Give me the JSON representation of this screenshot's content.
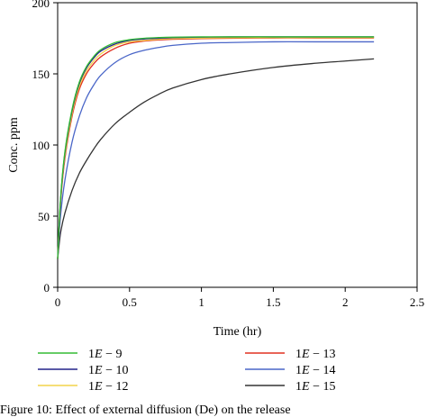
{
  "chart_data": {
    "type": "line",
    "xlabel": "Time (hr)",
    "ylabel": "Conc. ppm",
    "xlim": [
      0,
      2.5
    ],
    "ylim": [
      0,
      200
    ],
    "xticks": [
      "0",
      "0.5",
      "1",
      "1.5",
      "2",
      "2.5"
    ],
    "yticks": [
      "0",
      "50",
      "100",
      "150",
      "200"
    ],
    "grid": false,
    "legend_position": "bottom",
    "series": [
      {
        "name_prefix": "1",
        "name_var": "E",
        "name_suffix": "− 9",
        "color": "#33bb33",
        "x": [
          0,
          0.02,
          0.05,
          0.1,
          0.15,
          0.2,
          0.25,
          0.3,
          0.4,
          0.5,
          0.6,
          0.7,
          0.8,
          1.0,
          1.2,
          1.5,
          1.8,
          2.0,
          2.2
        ],
        "y": [
          20,
          62,
          95,
          125,
          144,
          155,
          162,
          167,
          172,
          174,
          175,
          175.5,
          175.8,
          176,
          176,
          176,
          176,
          176,
          176
        ]
      },
      {
        "name_prefix": "1",
        "name_var": "E",
        "name_suffix": "− 10",
        "color": "#22228a",
        "x": [
          0,
          0.02,
          0.05,
          0.1,
          0.15,
          0.2,
          0.25,
          0.3,
          0.4,
          0.5,
          0.6,
          0.7,
          0.8,
          1.0,
          1.2,
          1.5,
          1.8,
          2.0,
          2.2
        ],
        "y": [
          20,
          61,
          94,
          124,
          143,
          154,
          161,
          166,
          171,
          173.5,
          174.5,
          175,
          175.5,
          175.8,
          176,
          176,
          176,
          176,
          176
        ]
      },
      {
        "name_prefix": "1",
        "name_var": "E",
        "name_suffix": "− 12",
        "color": "#f2d44a",
        "x": [
          0,
          0.02,
          0.05,
          0.1,
          0.15,
          0.2,
          0.25,
          0.3,
          0.4,
          0.5,
          0.6,
          0.7,
          0.8,
          1.0,
          1.2,
          1.5,
          1.8,
          2.0,
          2.2
        ],
        "y": [
          20,
          60,
          92,
          122,
          141,
          152,
          159,
          164,
          170,
          172.5,
          173.5,
          174.3,
          174.8,
          175.2,
          175.4,
          175.5,
          175.5,
          175.5,
          175.5
        ]
      },
      {
        "name_prefix": "1",
        "name_var": "E",
        "name_suffix": "− 13",
        "color": "#e03020",
        "x": [
          0,
          0.02,
          0.05,
          0.1,
          0.15,
          0.2,
          0.25,
          0.3,
          0.4,
          0.5,
          0.6,
          0.7,
          0.8,
          1.0,
          1.2,
          1.5,
          1.8,
          2.0,
          2.2
        ],
        "y": [
          20,
          59,
          90,
          120,
          139,
          150,
          157,
          162,
          168,
          171.5,
          173,
          173.8,
          174.3,
          174.8,
          175,
          175.2,
          175.2,
          175.2,
          175.2
        ]
      },
      {
        "name_prefix": "1",
        "name_var": "E",
        "name_suffix": "− 14",
        "color": "#4a66c8",
        "x": [
          0,
          0.02,
          0.05,
          0.1,
          0.15,
          0.2,
          0.25,
          0.3,
          0.4,
          0.5,
          0.6,
          0.7,
          0.8,
          1.0,
          1.2,
          1.5,
          1.8,
          2.0,
          2.2
        ],
        "y": [
          20,
          50,
          75,
          102,
          120,
          133,
          142,
          149,
          158,
          163.5,
          166.5,
          168.5,
          170,
          171.5,
          172,
          172.5,
          172.5,
          172.5,
          172.5
        ]
      },
      {
        "name_prefix": "1",
        "name_var": "E",
        "name_suffix": "− 15",
        "color": "#333333",
        "x": [
          0,
          0.02,
          0.05,
          0.1,
          0.15,
          0.2,
          0.25,
          0.3,
          0.4,
          0.5,
          0.6,
          0.7,
          0.8,
          1.0,
          1.2,
          1.5,
          1.8,
          2.0,
          2.2
        ],
        "y": [
          20,
          38,
          52,
          68,
          80,
          89,
          97,
          104,
          115,
          123,
          130,
          135.5,
          140,
          146,
          150,
          154.5,
          157.5,
          159,
          160.5
        ]
      }
    ]
  },
  "caption": {
    "text": "Figure 10: Effect of external diffusion (De) on the release"
  }
}
